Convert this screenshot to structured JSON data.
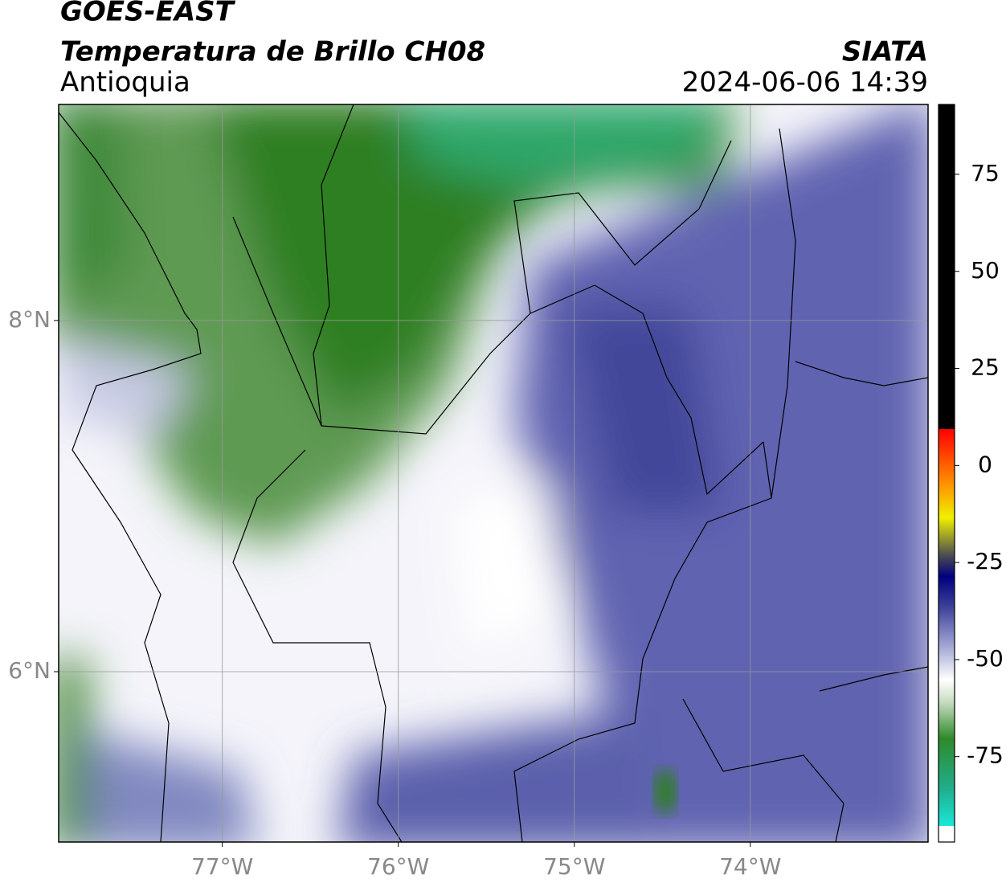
{
  "chart_data": {
    "type": "map",
    "title": "GOES-EAST",
    "subtitle": "Temperatura de Brillo CH08",
    "region": "Antioquia",
    "source": "SIATA",
    "timestamp": "2024-06-06 14:39",
    "xlim": [
      -77.93,
      -72.99
    ],
    "ylim": [
      5.03,
      9.23
    ],
    "xticks": [
      {
        "value": -77,
        "label": "77°W"
      },
      {
        "value": -76,
        "label": "76°W"
      },
      {
        "value": -75,
        "label": "75°W"
      },
      {
        "value": -74,
        "label": "74°W"
      }
    ],
    "yticks": [
      {
        "value": 6,
        "label": "6°N"
      },
      {
        "value": 8,
        "label": "8°N"
      }
    ],
    "grid": true,
    "colorbar": {
      "lim": [
        -97,
        93
      ],
      "ticks": [
        75,
        50,
        25,
        0,
        -25,
        -50,
        -75
      ]
    }
  }
}
